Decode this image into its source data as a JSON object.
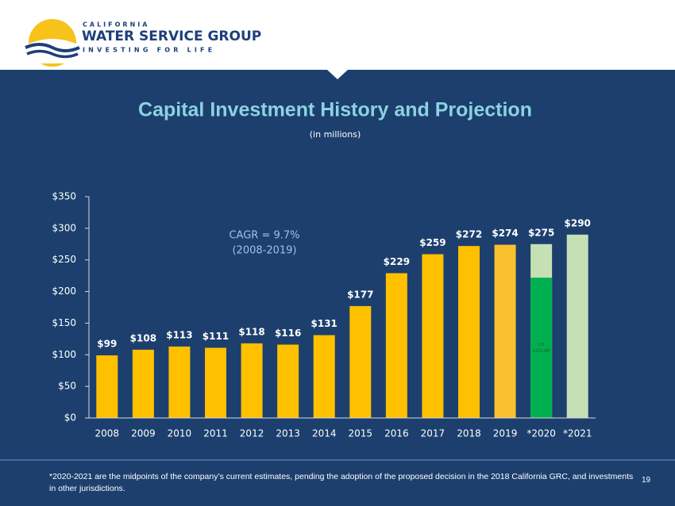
{
  "header": {
    "brand_top": "CALIFORNIA",
    "brand": "WATER SERVICE GROUP",
    "tagline": "INVESTING FOR LIFE"
  },
  "chart_data": {
    "type": "bar",
    "title": "Capital Investment History and Projection",
    "subtitle": "(in millions)",
    "categories": [
      "2008",
      "2009",
      "2010",
      "2011",
      "2012",
      "2013",
      "2014",
      "2015",
      "2016",
      "2017",
      "2018",
      "2019",
      "*2020",
      "*2021"
    ],
    "values": [
      99,
      108,
      113,
      111,
      118,
      116,
      131,
      177,
      229,
      259,
      272,
      274,
      275,
      290
    ],
    "value_labels": [
      "$99",
      "$108",
      "$113",
      "$111",
      "$118",
      "$116",
      "$131",
      "$177",
      "$229",
      "$259",
      "$272",
      "$274",
      "$275",
      "$290"
    ],
    "colors": [
      "#ffc000",
      "#ffc000",
      "#ffc000",
      "#ffc000",
      "#ffc000",
      "#ffc000",
      "#ffc000",
      "#ffc000",
      "#ffc000",
      "#ffc000",
      "#ffc000",
      "#f9c12e",
      "#c5e0b4",
      "#c5e0b4"
    ],
    "segment": {
      "category_index": 12,
      "value": 221.9,
      "color": "#00b050",
      "labels": [
        "Q3",
        "$221.9M"
      ]
    },
    "ylim": [
      0,
      350
    ],
    "yticks": [
      {
        "value": 0,
        "label": "$0"
      },
      {
        "value": 50,
        "label": "$50"
      },
      {
        "value": 100,
        "label": "$100"
      },
      {
        "value": 150,
        "label": "$150"
      },
      {
        "value": 200,
        "label": "$200"
      },
      {
        "value": 250,
        "label": "$250"
      },
      {
        "value": 300,
        "label": "$300"
      },
      {
        "value": 350,
        "label": "$350"
      }
    ],
    "annotations": [
      "CAGR = 9.7%",
      "(2008-2019)"
    ]
  },
  "footnote": "*2020-2021 are the midpoints of the company’s current estimates, pending the adoption of the proposed decision in the 2018 California GRC, and investments in other jurisdictions.",
  "page_number": "19"
}
